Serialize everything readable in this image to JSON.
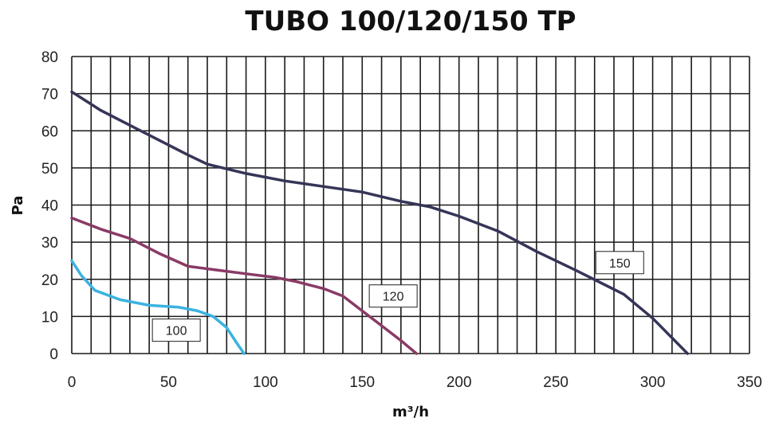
{
  "chart_data": {
    "type": "line",
    "title": "TUBO 100/120/150 TP",
    "xlabel": "m³/h",
    "ylabel": "Pa",
    "xlim": [
      0,
      350
    ],
    "ylim": [
      0,
      80
    ],
    "x_ticks": [
      0,
      50,
      100,
      150,
      200,
      250,
      300,
      350
    ],
    "y_ticks": [
      0,
      10,
      20,
      30,
      40,
      50,
      60,
      70,
      80
    ],
    "grid": true,
    "grid_x_step": 10,
    "grid_y_step": 10,
    "series": [
      {
        "name": "100",
        "color": "#3bb3e0",
        "points": [
          [
            0,
            25
          ],
          [
            5,
            21
          ],
          [
            12,
            17
          ],
          [
            25,
            14.5
          ],
          [
            40,
            13
          ],
          [
            55,
            12.5
          ],
          [
            65,
            11.5
          ],
          [
            73,
            10
          ],
          [
            80,
            7
          ],
          [
            85,
            3
          ],
          [
            89,
            0
          ]
        ]
      },
      {
        "name": "120",
        "color": "#8a3a66",
        "points": [
          [
            0,
            36.5
          ],
          [
            15,
            33.5
          ],
          [
            30,
            31
          ],
          [
            45,
            27
          ],
          [
            60,
            23.5
          ],
          [
            75,
            22.5
          ],
          [
            90,
            21.5
          ],
          [
            105,
            20.5
          ],
          [
            115,
            19.5
          ],
          [
            130,
            17.5
          ],
          [
            140,
            15.5
          ],
          [
            150,
            11.5
          ],
          [
            160,
            7.5
          ],
          [
            170,
            3.5
          ],
          [
            178,
            0
          ]
        ]
      },
      {
        "name": "150",
        "color": "#353558",
        "points": [
          [
            0,
            70.5
          ],
          [
            15,
            65.5
          ],
          [
            30,
            61.5
          ],
          [
            45,
            57.5
          ],
          [
            60,
            53.5
          ],
          [
            70,
            51
          ],
          [
            90,
            48.5
          ],
          [
            110,
            46.5
          ],
          [
            130,
            45
          ],
          [
            150,
            43.5
          ],
          [
            170,
            41
          ],
          [
            185,
            39.5
          ],
          [
            200,
            37
          ],
          [
            220,
            33
          ],
          [
            240,
            27.5
          ],
          [
            260,
            22.5
          ],
          [
            285,
            16
          ],
          [
            300,
            9.5
          ],
          [
            318,
            0
          ]
        ]
      }
    ],
    "annotations": [
      {
        "text": "100",
        "x": 54,
        "y": 6.3
      },
      {
        "text": "120",
        "x": 166,
        "y": 15.5
      },
      {
        "text": "150",
        "x": 283,
        "y": 24.5
      }
    ]
  }
}
